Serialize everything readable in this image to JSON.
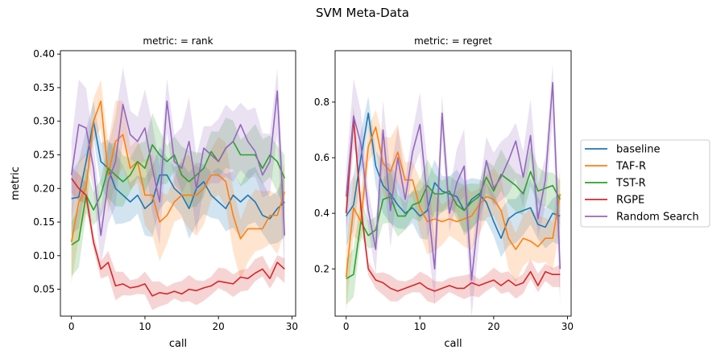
{
  "figure": {
    "suptitle": "SVM Meta-Data"
  },
  "legend": {
    "entries": [
      {
        "label": "baseline",
        "color": "#1f77b4"
      },
      {
        "label": "TAF-R",
        "color": "#ff7f0e"
      },
      {
        "label": "TST-R",
        "color": "#2ca02c"
      },
      {
        "label": "RGPE",
        "color": "#d62728"
      },
      {
        "label": "Random Search",
        "color": "#9467bd"
      }
    ],
    "placement": "right"
  },
  "chart_data": [
    {
      "type": "line",
      "title": "metric:  = rank",
      "xlabel": "call",
      "ylabel": "metric",
      "xlim": [
        -1.5,
        30.5
      ],
      "ylim": [
        0.01,
        0.405
      ],
      "xticks": [
        0,
        10,
        20,
        30
      ],
      "yticks": [
        0.05,
        0.1,
        0.15,
        0.2,
        0.25,
        0.3,
        0.35,
        0.4
      ],
      "ytick_labels": [
        "0.05",
        "0.10",
        "0.15",
        "0.20",
        "0.25",
        "0.30",
        "0.35",
        "0.40"
      ],
      "grid": false,
      "x": [
        0,
        1,
        2,
        3,
        4,
        5,
        6,
        7,
        8,
        9,
        10,
        11,
        12,
        13,
        14,
        15,
        16,
        17,
        18,
        19,
        20,
        21,
        22,
        23,
        24,
        25,
        26,
        27,
        28,
        29
      ],
      "series": [
        {
          "name": "baseline",
          "color": "#1f77b4",
          "values": [
            0.185,
            0.187,
            0.24,
            0.3,
            0.24,
            0.23,
            0.2,
            0.19,
            0.18,
            0.19,
            0.17,
            0.18,
            0.22,
            0.22,
            0.2,
            0.19,
            0.17,
            0.2,
            0.21,
            0.19,
            0.18,
            0.17,
            0.19,
            0.18,
            0.19,
            0.18,
            0.16,
            0.155,
            0.17,
            0.18
          ],
          "band": 0.04
        },
        {
          "name": "TAF-R",
          "color": "#ff7f0e",
          "values": [
            0.12,
            0.18,
            0.2,
            0.3,
            0.33,
            0.22,
            0.27,
            0.28,
            0.23,
            0.24,
            0.19,
            0.19,
            0.15,
            0.16,
            0.18,
            0.19,
            0.19,
            0.19,
            0.2,
            0.22,
            0.22,
            0.21,
            0.16,
            0.125,
            0.14,
            0.14,
            0.14,
            0.16,
            0.16,
            0.195
          ],
          "band": 0.045
        },
        {
          "name": "TST-R",
          "color": "#2ca02c",
          "values": [
            0.116,
            0.123,
            0.19,
            0.168,
            0.19,
            0.23,
            0.22,
            0.21,
            0.22,
            0.24,
            0.23,
            0.265,
            0.25,
            0.24,
            0.25,
            0.22,
            0.21,
            0.22,
            0.23,
            0.255,
            0.24,
            0.26,
            0.27,
            0.25,
            0.25,
            0.25,
            0.23,
            0.25,
            0.24,
            0.215
          ],
          "band": 0.035
        },
        {
          "name": "RGPE",
          "color": "#d62728",
          "values": [
            0.215,
            0.2,
            0.19,
            0.12,
            0.08,
            0.09,
            0.055,
            0.058,
            0.052,
            0.054,
            0.058,
            0.04,
            0.045,
            0.043,
            0.047,
            0.043,
            0.05,
            0.048,
            0.052,
            0.055,
            0.062,
            0.06,
            0.058,
            0.068,
            0.066,
            0.074,
            0.08,
            0.066,
            0.09,
            0.08
          ],
          "band": 0.016
        },
        {
          "name": "Random Search",
          "color": "#9467bd",
          "values": [
            0.22,
            0.295,
            0.29,
            0.23,
            0.13,
            0.21,
            0.24,
            0.325,
            0.28,
            0.27,
            0.29,
            0.23,
            0.18,
            0.33,
            0.24,
            0.23,
            0.27,
            0.2,
            0.26,
            0.25,
            0.24,
            0.26,
            0.27,
            0.295,
            0.27,
            0.255,
            0.22,
            0.24,
            0.345,
            0.13
          ],
          "band": 0.05
        }
      ]
    },
    {
      "type": "line",
      "title": "metric:  = regret",
      "xlabel": "call",
      "ylabel": "",
      "xlim": [
        -1.5,
        30.5
      ],
      "ylim": [
        0.03,
        0.985
      ],
      "xticks": [
        0,
        10,
        20,
        30
      ],
      "yticks": [
        0.2,
        0.4,
        0.6,
        0.8
      ],
      "ytick_labels": [
        "0.2",
        "0.4",
        "0.6",
        "0.8"
      ],
      "grid": false,
      "x": [
        0,
        1,
        2,
        3,
        4,
        5,
        6,
        7,
        8,
        9,
        10,
        11,
        12,
        13,
        14,
        15,
        16,
        17,
        18,
        19,
        20,
        21,
        22,
        23,
        24,
        25,
        26,
        27,
        28,
        29
      ],
      "series": [
        {
          "name": "baseline",
          "color": "#1f77b4",
          "values": [
            0.39,
            0.43,
            0.6,
            0.76,
            0.57,
            0.5,
            0.47,
            0.43,
            0.4,
            0.42,
            0.39,
            0.41,
            0.51,
            0.48,
            0.47,
            0.46,
            0.41,
            0.45,
            0.47,
            0.44,
            0.37,
            0.31,
            0.38,
            0.4,
            0.41,
            0.42,
            0.36,
            0.35,
            0.4,
            0.39
          ],
          "band": 0.08
        },
        {
          "name": "TAF-R",
          "color": "#ff7f0e",
          "values": [
            0.17,
            0.42,
            0.37,
            0.64,
            0.71,
            0.58,
            0.55,
            0.62,
            0.52,
            0.52,
            0.42,
            0.37,
            0.38,
            0.37,
            0.38,
            0.37,
            0.38,
            0.39,
            0.43,
            0.46,
            0.45,
            0.41,
            0.31,
            0.27,
            0.31,
            0.3,
            0.28,
            0.31,
            0.31,
            0.47
          ],
          "band": 0.09
        },
        {
          "name": "TST-R",
          "color": "#2ca02c",
          "values": [
            0.165,
            0.18,
            0.37,
            0.32,
            0.34,
            0.45,
            0.46,
            0.39,
            0.39,
            0.43,
            0.44,
            0.5,
            0.47,
            0.47,
            0.48,
            0.43,
            0.41,
            0.44,
            0.46,
            0.53,
            0.48,
            0.54,
            0.52,
            0.5,
            0.47,
            0.55,
            0.48,
            0.49,
            0.5,
            0.45
          ],
          "band": 0.07
        },
        {
          "name": "RGPE",
          "color": "#d62728",
          "values": [
            0.4,
            0.74,
            0.42,
            0.2,
            0.16,
            0.15,
            0.13,
            0.12,
            0.13,
            0.14,
            0.15,
            0.13,
            0.12,
            0.13,
            0.14,
            0.13,
            0.13,
            0.15,
            0.14,
            0.15,
            0.16,
            0.14,
            0.16,
            0.14,
            0.15,
            0.19,
            0.14,
            0.19,
            0.18,
            0.18
          ],
          "band": 0.035
        },
        {
          "name": "Random Search",
          "color": "#9467bd",
          "values": [
            0.46,
            0.75,
            0.65,
            0.41,
            0.27,
            0.7,
            0.41,
            0.6,
            0.45,
            0.62,
            0.72,
            0.45,
            0.2,
            0.76,
            0.4,
            0.51,
            0.57,
            0.16,
            0.41,
            0.59,
            0.49,
            0.53,
            0.59,
            0.66,
            0.53,
            0.68,
            0.38,
            0.52,
            0.87,
            0.2
          ],
          "band": 0.1
        }
      ]
    }
  ]
}
